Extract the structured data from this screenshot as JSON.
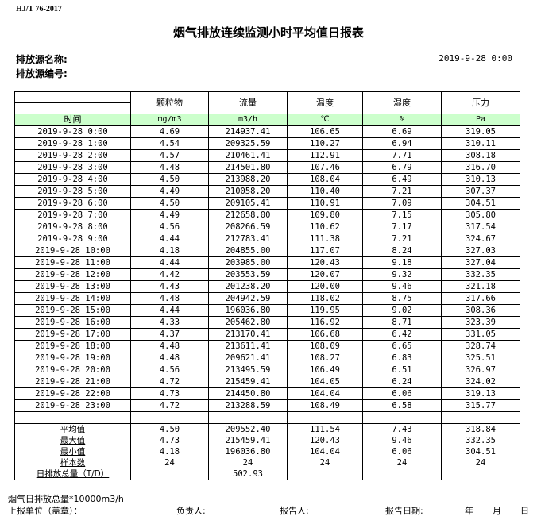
{
  "standard": "HJ/T  76-2017",
  "title": "烟气排放连续监测小时平均值日报表",
  "source_name_label": "排放源名称:",
  "source_code_label": "排放源编号:",
  "report_datetime": "2019-9-28 0:00",
  "columns": [
    "颗粒物",
    "流量",
    "温度",
    "湿度",
    "压力"
  ],
  "time_label": "时间",
  "units": [
    "mg/m3",
    "m3/h",
    "℃",
    "%",
    "Pa"
  ],
  "rows": [
    [
      "2019-9-28 0:00",
      "4.69",
      "214937.41",
      "106.65",
      "6.69",
      "319.05"
    ],
    [
      "2019-9-28 1:00",
      "4.54",
      "209325.59",
      "110.27",
      "6.94",
      "310.11"
    ],
    [
      "2019-9-28 2:00",
      "4.57",
      "210461.41",
      "112.91",
      "7.71",
      "308.18"
    ],
    [
      "2019-9-28 3:00",
      "4.48",
      "214501.80",
      "107.46",
      "6.79",
      "316.70"
    ],
    [
      "2019-9-28 4:00",
      "4.50",
      "213988.20",
      "108.04",
      "6.49",
      "310.13"
    ],
    [
      "2019-9-28 5:00",
      "4.49",
      "210058.20",
      "110.40",
      "7.21",
      "307.37"
    ],
    [
      "2019-9-28 6:00",
      "4.50",
      "209105.41",
      "110.91",
      "7.09",
      "304.51"
    ],
    [
      "2019-9-28 7:00",
      "4.49",
      "212658.00",
      "109.80",
      "7.15",
      "305.80"
    ],
    [
      "2019-9-28 8:00",
      "4.56",
      "208266.59",
      "110.62",
      "7.17",
      "317.54"
    ],
    [
      "2019-9-28 9:00",
      "4.44",
      "212783.41",
      "111.38",
      "7.21",
      "324.67"
    ],
    [
      "2019-9-28 10:00",
      "4.18",
      "204855.00",
      "117.07",
      "8.24",
      "327.03"
    ],
    [
      "2019-9-28 11:00",
      "4.44",
      "203985.00",
      "120.43",
      "9.18",
      "327.04"
    ],
    [
      "2019-9-28 12:00",
      "4.42",
      "203553.59",
      "120.07",
      "9.32",
      "332.35"
    ],
    [
      "2019-9-28 13:00",
      "4.43",
      "201238.20",
      "120.00",
      "9.46",
      "321.18"
    ],
    [
      "2019-9-28 14:00",
      "4.48",
      "204942.59",
      "118.02",
      "8.75",
      "317.66"
    ],
    [
      "2019-9-28 15:00",
      "4.44",
      "196036.80",
      "119.95",
      "9.02",
      "308.36"
    ],
    [
      "2019-9-28 16:00",
      "4.33",
      "205462.80",
      "116.92",
      "8.71",
      "323.39"
    ],
    [
      "2019-9-28 17:00",
      "4.37",
      "213170.41",
      "106.68",
      "6.42",
      "331.05"
    ],
    [
      "2019-9-28 18:00",
      "4.48",
      "213611.41",
      "108.09",
      "6.65",
      "328.74"
    ],
    [
      "2019-9-28 19:00",
      "4.48",
      "209621.41",
      "108.27",
      "6.83",
      "325.51"
    ],
    [
      "2019-9-28 20:00",
      "4.56",
      "213495.59",
      "106.49",
      "6.51",
      "326.97"
    ],
    [
      "2019-9-28 21:00",
      "4.72",
      "215459.41",
      "104.05",
      "6.24",
      "324.02"
    ],
    [
      "2019-9-28 22:00",
      "4.73",
      "214450.80",
      "104.04",
      "6.06",
      "319.13"
    ],
    [
      "2019-9-28 23:00",
      "4.72",
      "213288.59",
      "108.49",
      "6.58",
      "315.77"
    ]
  ],
  "stats": [
    [
      "平均值",
      "4.50",
      "209552.40",
      "111.54",
      "7.43",
      "318.84"
    ],
    [
      "最大值",
      "4.73",
      "215459.41",
      "120.43",
      "9.46",
      "332.35"
    ],
    [
      "最小值",
      "4.18",
      "196036.80",
      "104.04",
      "6.06",
      "304.51"
    ],
    [
      "样本数",
      "24",
      "24",
      "24",
      "24",
      "24"
    ],
    [
      "日排放总量（T/D）",
      "",
      "502.93",
      "",
      "",
      ""
    ]
  ],
  "footer": {
    "note": "烟气日排放总量*10000m3/h",
    "unit_label": "上报单位（盖章）：",
    "responsible_label": "负责人:",
    "reporter_label": "报告人:",
    "report_date_label": "报告日期:",
    "year": "年",
    "month": "月",
    "day": "日"
  }
}
